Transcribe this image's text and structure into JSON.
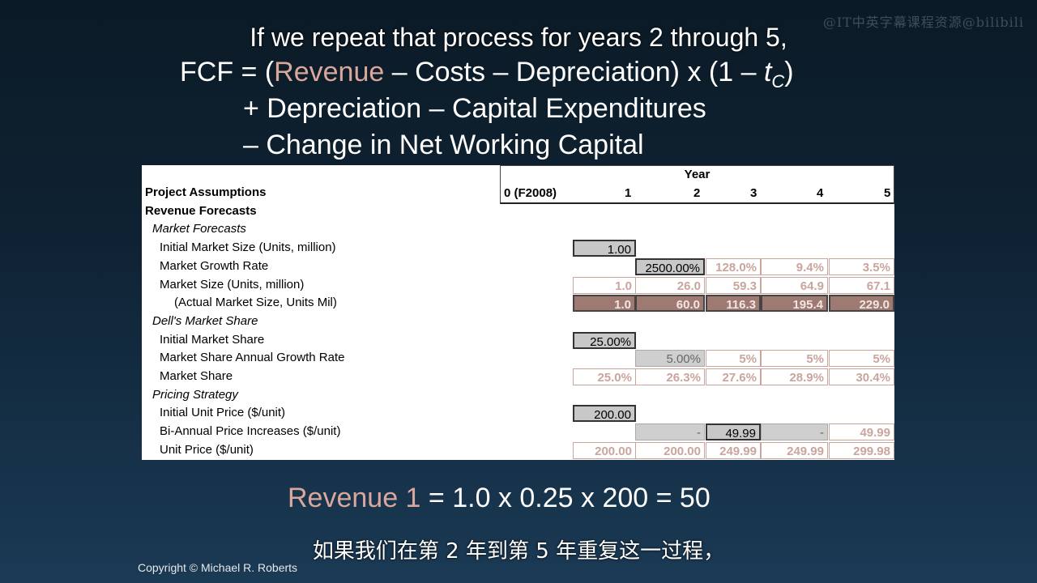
{
  "watermark": "@IT中英字幕课程资源@bilibili",
  "overlay_caption": "If we repeat that process for years 2 through 5,",
  "formula": {
    "line1_prefix": "FCF = (",
    "line1_revenue": "Revenue",
    "line1_rest": " – Costs – Depreciation) x (1 – ",
    "line1_tc": "t",
    "line1_tc_sub": "C",
    "line1_end": ")",
    "line2": "+ Depreciation – Capital Expenditures",
    "line3": "– Change in Net Working Capital"
  },
  "sheet": {
    "year_title": "Year",
    "years": [
      "0 (F2008)",
      "1",
      "2",
      "3",
      "4",
      "5"
    ],
    "rows": [
      {
        "label": "Project Assumptions",
        "style": "bold"
      },
      {
        "label": "Revenue Forecasts",
        "style": "bold"
      },
      {
        "label": "Market Forecasts",
        "style": "ital"
      },
      {
        "label": "Initial Market Size (Units, million)",
        "values": [
          "1.00",
          "",
          "",
          "",
          ""
        ]
      },
      {
        "label": "Market Growth Rate",
        "values": [
          "",
          "2500.00%",
          "128.0%",
          "9.4%",
          "3.5%"
        ]
      },
      {
        "label": "Market Size (Units, million)",
        "values": [
          "1.0",
          "26.0",
          "59.3",
          "64.9",
          "67.1"
        ]
      },
      {
        "label": "(Actual Market Size, Units Mil)",
        "values": [
          "1.0",
          "60.0",
          "116.3",
          "195.4",
          "229.0"
        ]
      },
      {
        "label": "Dell's Market Share",
        "style": "ital"
      },
      {
        "label": "Initial Market Share",
        "values": [
          "25.00%",
          "",
          "",
          "",
          ""
        ]
      },
      {
        "label": "Market Share Annual Growth Rate",
        "values": [
          "",
          "5.00%",
          "5%",
          "5%",
          "5%"
        ]
      },
      {
        "label": "Market Share",
        "values": [
          "25.0%",
          "26.3%",
          "27.6%",
          "28.9%",
          "30.4%"
        ]
      },
      {
        "label": "Pricing Strategy",
        "style": "ital"
      },
      {
        "label": "Initial Unit Price ($/unit)",
        "values": [
          "200.00",
          "",
          "",
          "",
          ""
        ]
      },
      {
        "label": "Bi-Annual Price Increases ($/unit)",
        "values": [
          "",
          "-",
          "49.99",
          "-",
          "49.99"
        ]
      },
      {
        "label": "Unit Price ($/unit)",
        "values": [
          "200.00",
          "200.00",
          "249.99",
          "249.99",
          "299.98"
        ]
      }
    ]
  },
  "bottom_equation": {
    "revenue_label": "Revenue 1",
    "rest": " = 1.0 x 0.25 x 200 = 50"
  },
  "subtitle": "如果我们在第 2 年到第 5 年重复这一过程，",
  "copyright": "Copyright © Michael R. Roberts",
  "colors": {
    "revenue_highlight": "#d9a79b",
    "calc_text": "#c9a59c",
    "dark_cell": "#9e7a72"
  }
}
